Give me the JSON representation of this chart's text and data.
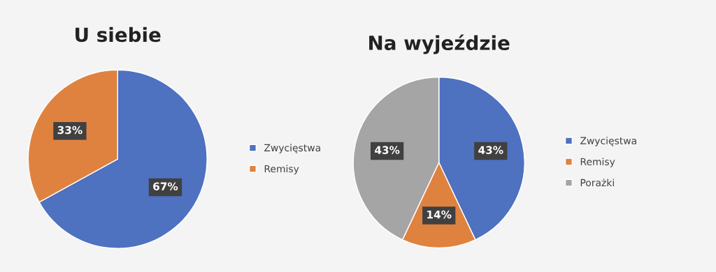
{
  "chart_data": [
    {
      "type": "pie",
      "title": "U siebie",
      "categories": [
        "Zwycięstwa",
        "Remisy"
      ],
      "values": [
        67,
        33
      ],
      "colors": [
        "#4e71c0",
        "#e0823f"
      ],
      "value_labels": [
        "67%",
        "33%"
      ],
      "legend": "right"
    },
    {
      "type": "pie",
      "title": "Na wyjeździe",
      "categories": [
        "Zwycięstwa",
        "Remisy",
        "Porażki"
      ],
      "values": [
        43,
        14,
        43
      ],
      "colors": [
        "#4e71c0",
        "#e0823f",
        "#a5a5a5"
      ],
      "value_labels": [
        "43%",
        "14%",
        "43%"
      ],
      "legend": "right"
    }
  ]
}
